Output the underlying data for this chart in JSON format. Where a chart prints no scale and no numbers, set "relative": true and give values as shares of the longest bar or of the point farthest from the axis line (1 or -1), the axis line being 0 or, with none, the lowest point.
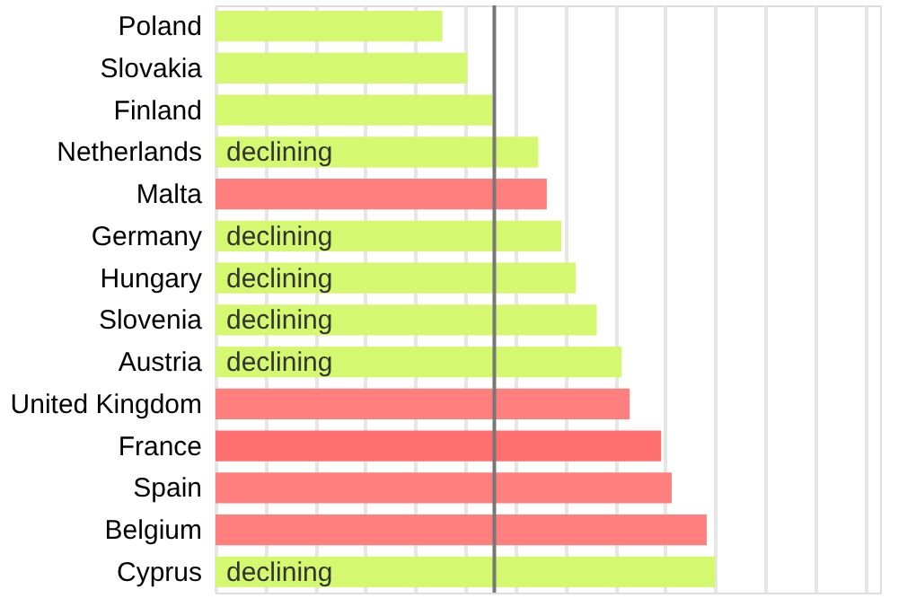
{
  "chart_data": {
    "type": "bar",
    "orientation": "horizontal",
    "relative": true,
    "grid": "x",
    "categories": [
      "Poland",
      "Slovakia",
      "Finland",
      "Netherlands",
      "Malta",
      "Germany",
      "Hungary",
      "Slovenia",
      "Austria",
      "United Kingdom",
      "France",
      "Spain",
      "Belgium",
      "Cyprus"
    ],
    "values": [
      0.454,
      0.504,
      0.554,
      0.646,
      0.663,
      0.692,
      0.721,
      0.763,
      0.813,
      0.829,
      0.892,
      0.913,
      0.983,
      1
    ],
    "colors": [
      "#d4f870",
      "#d4f870",
      "#d4f870",
      "#d4f870",
      "#ff7f7f",
      "#d4f870",
      "#d4f870",
      "#d4f870",
      "#d4f870",
      "#ff7f7f",
      "#ff6f6f",
      "#ff7f7f",
      "#ff7f7f",
      "#d4f870"
    ],
    "ref_lines": [
      {
        "axis": "x",
        "value": 0.558,
        "color": "#777777"
      }
    ],
    "annotations": [
      {
        "text": "declining",
        "y": "Netherlands"
      },
      {
        "text": "declining",
        "y": "Germany"
      },
      {
        "text": "declining",
        "y": "Hungary"
      },
      {
        "text": "declining",
        "y": "Slovenia"
      },
      {
        "text": "declining",
        "y": "Austria"
      },
      {
        "text": "declining",
        "y": "Cyprus"
      }
    ]
  }
}
